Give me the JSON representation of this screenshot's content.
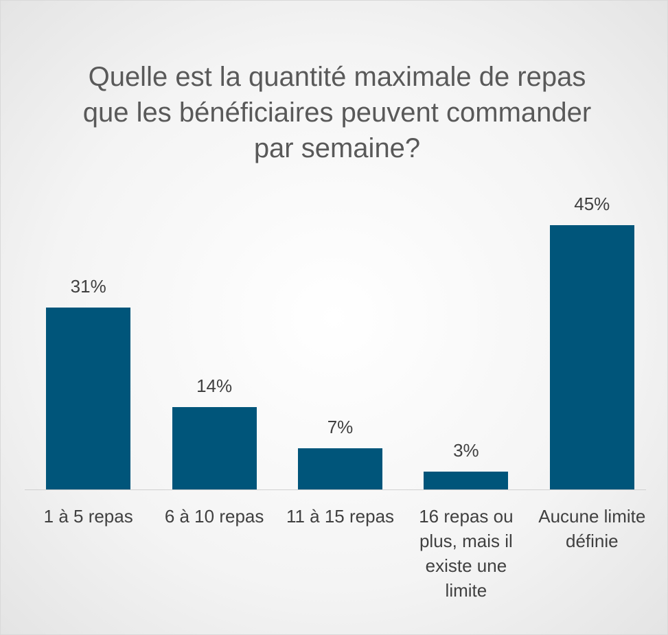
{
  "chart_data": {
    "type": "bar",
    "title": "Quelle est la quantité maximale de repas que les bénéficiaires peuvent commander par semaine?",
    "categories": [
      "1 à 5 repas",
      "6 à 10 repas",
      "11 à 15 repas",
      "16 repas ou plus, mais il existe une limite",
      "Aucune limite définie"
    ],
    "values": [
      31,
      14,
      7,
      3,
      45
    ],
    "value_labels": [
      "31%",
      "14%",
      "7%",
      "3%",
      "45%"
    ],
    "color": "#00557a"
  }
}
